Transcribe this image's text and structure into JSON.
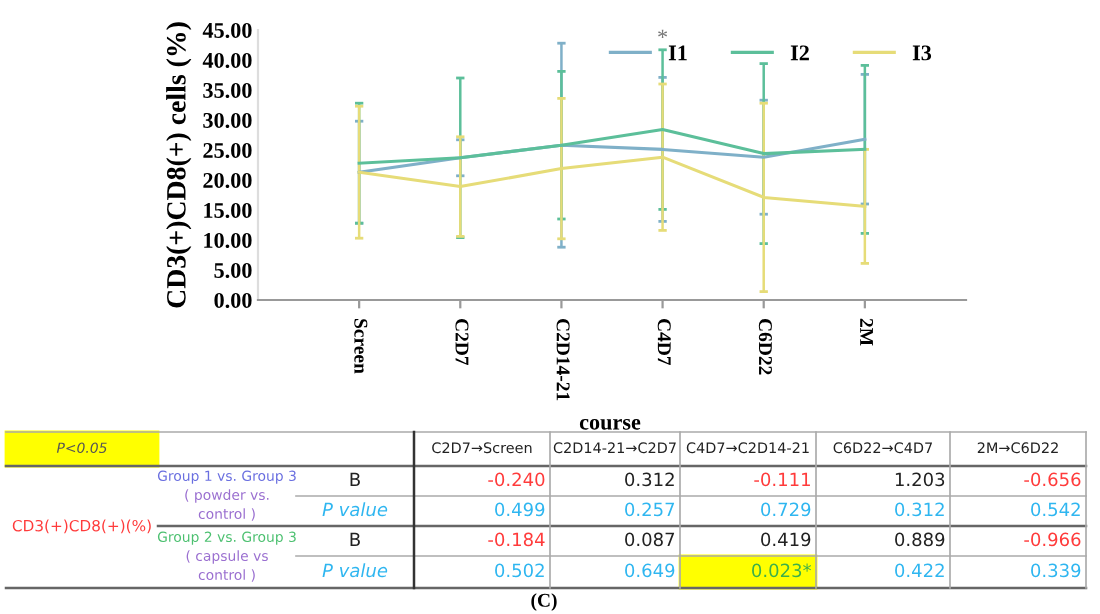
{
  "chart_data": {
    "type": "line",
    "ylabel": "CD3(+)CD8(+) cells (%)",
    "xlabel": "course",
    "categories": [
      "Screen",
      "C2D7",
      "C2D14-21",
      "C4D7",
      "C6D22",
      "2M"
    ],
    "ylim": [
      0,
      45
    ],
    "yticks": [
      {
        "value": 0,
        "label": "0.00"
      },
      {
        "value": 5,
        "label": "5.00"
      },
      {
        "value": 10,
        "label": "10.00"
      },
      {
        "value": 15,
        "label": "15.00"
      },
      {
        "value": 20,
        "label": "20.00"
      },
      {
        "value": 25,
        "label": "25.00"
      },
      {
        "value": 30,
        "label": "30.00"
      },
      {
        "value": 35,
        "label": "35.00"
      },
      {
        "value": 40,
        "label": "40.00"
      },
      {
        "value": 45,
        "label": "45.00"
      }
    ],
    "series": [
      {
        "name": "I1",
        "color": "#7fb0c8",
        "values": [
          21.3,
          23.7,
          25.8,
          25.1,
          23.8,
          26.8
        ],
        "errors": [
          8.5,
          3,
          17,
          12,
          9.5,
          10.8
        ]
      },
      {
        "name": "I2",
        "color": "#5cbf9a",
        "values": [
          22.8,
          23.7,
          25.8,
          28.4,
          24.4,
          25.1
        ],
        "errors": [
          10,
          13.3,
          12.3,
          13.3,
          15,
          14
        ]
      },
      {
        "name": "I3",
        "color": "#e6dc78",
        "values": [
          21.3,
          18.9,
          21.9,
          23.8,
          17.1,
          15.6
        ],
        "errors": [
          11,
          8.3,
          11.7,
          12.2,
          15.7,
          9.5
        ]
      }
    ],
    "legend": "top right",
    "grid": false,
    "marker": "none",
    "line_style": "solid",
    "annotations": [
      "*",
      "P<0.05",
      "C2D7→Screen",
      "C2D14-21→C2D7",
      "C4D7→C2D14-21",
      "C6D22→C4D7",
      "2M→C6D22",
      "CD3(+)CD8(+)(%)",
      "Group 1 vs. Group 3",
      "( powder vs.",
      "control )",
      "B",
      "-0.240",
      "0.312",
      "-0.111",
      "1.203",
      "-0.656",
      "P value",
      "0.499",
      "0.257",
      "0.729",
      "0.312",
      "0.542",
      "Group 2 vs. Group 3",
      "( capsule vs",
      "control )",
      "B",
      "-0.184",
      "0.087",
      "0.419",
      "0.889",
      "-0.966",
      "P value",
      "0.502",
      "0.649",
      "0.023*",
      "0.422",
      "0.339",
      "(C)"
    ]
  }
}
